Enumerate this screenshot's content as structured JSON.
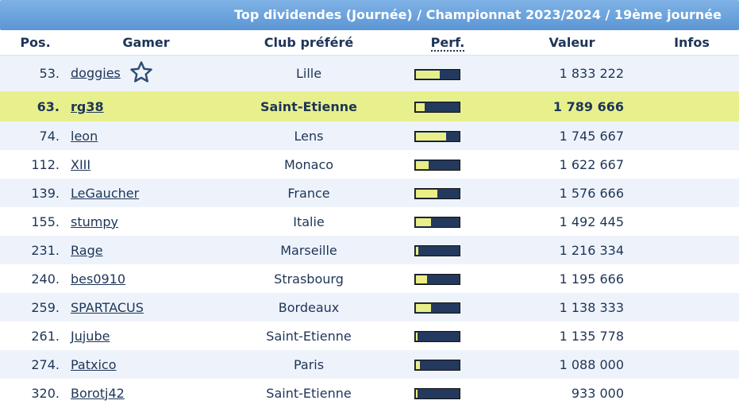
{
  "title": "Top dividendes (Journée) / Championnat 2023/2024 / 19ème journée",
  "columns": {
    "pos": "Pos.",
    "gamer": "Gamer",
    "club": "Club préféré",
    "perf": "Perf.",
    "valeur": "Valeur",
    "infos": "Infos"
  },
  "colors": {
    "header": "#6aa3dc",
    "highlight": "#e8f08e",
    "bar_bg": "#23395d",
    "bar_fill": "#e9ef86",
    "row_alt": "#eef3fb"
  },
  "rows": [
    {
      "pos": "53.",
      "gamer": "doggies",
      "club": "Lille",
      "perf": 0.55,
      "valeur": "1 833 222",
      "highlight": false,
      "icon": "star-icon"
    },
    {
      "pos": "63.",
      "gamer": "rg38",
      "club": "Saint-Etienne",
      "perf": 0.2,
      "valeur": "1 789 666",
      "highlight": true
    },
    {
      "pos": "74.",
      "gamer": "leon",
      "club": "Lens",
      "perf": 0.7,
      "valeur": "1 745 667",
      "highlight": false
    },
    {
      "pos": "112.",
      "gamer": "XIII",
      "club": "Monaco",
      "perf": 0.3,
      "valeur": "1 622 667",
      "highlight": false
    },
    {
      "pos": "139.",
      "gamer": "LeGaucher",
      "club": "France",
      "perf": 0.5,
      "valeur": "1 576 666",
      "highlight": false
    },
    {
      "pos": "155.",
      "gamer": "stumpy",
      "club": "Italie",
      "perf": 0.36,
      "valeur": "1 492 445",
      "highlight": false
    },
    {
      "pos": "231.",
      "gamer": "Rage",
      "club": "Marseille",
      "perf": 0.05,
      "valeur": "1 216 334",
      "highlight": false
    },
    {
      "pos": "240.",
      "gamer": "bes0910",
      "club": "Strasbourg",
      "perf": 0.25,
      "valeur": "1 195 666",
      "highlight": false
    },
    {
      "pos": "259.",
      "gamer": "SPARTACUS",
      "club": "Bordeaux",
      "perf": 0.36,
      "valeur": "1 138 333",
      "highlight": false
    },
    {
      "pos": "261.",
      "gamer": "Jujube",
      "club": "Saint-Etienne",
      "perf": 0.04,
      "valeur": "1 135 778",
      "highlight": false
    },
    {
      "pos": "274.",
      "gamer": "Patxico",
      "club": "Paris",
      "perf": 0.1,
      "valeur": "1 088 000",
      "highlight": false
    },
    {
      "pos": "320.",
      "gamer": "Borotj42",
      "club": "Saint-Etienne",
      "perf": 0.04,
      "valeur": "933 000",
      "highlight": false
    }
  ]
}
